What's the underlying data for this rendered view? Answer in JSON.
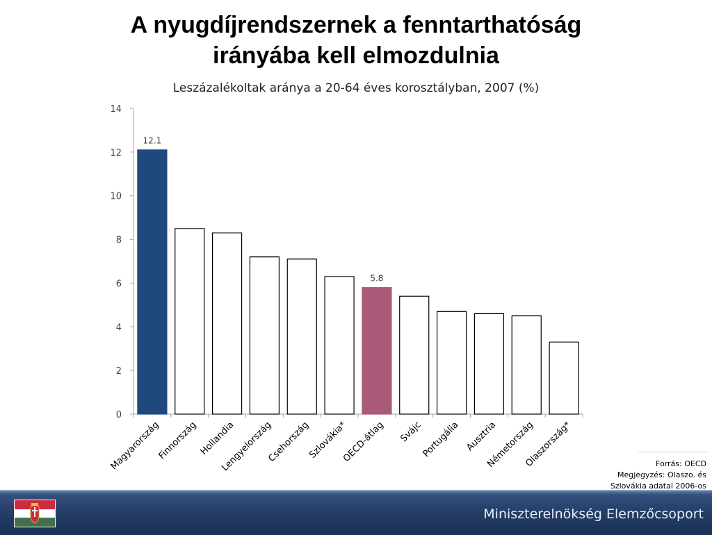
{
  "title": {
    "line1": "A nyugdíjrendszernek a fenntarthatóság",
    "line2": "irányába kell elmozdulnia"
  },
  "subtitle": "Leszázalékoltak aránya a 20-64 éves korosztályban, 2007 (%)",
  "chart_data": {
    "type": "bar",
    "title": "Leszázalékoltak aránya a 20-64 éves korosztályban, 2007 (%)",
    "categories": [
      "Magyarország",
      "Finnország",
      "Hollandia",
      "Lengyelország",
      "Csehország",
      "Szlovákia*",
      "OECD-átlag",
      "Svájc",
      "Portugália",
      "Ausztria",
      "Németország",
      "Olaszország*"
    ],
    "values": [
      12.1,
      8.5,
      8.3,
      7.2,
      7.1,
      6.3,
      5.8,
      5.4,
      4.7,
      4.6,
      4.5,
      3.3
    ],
    "data_labels": {
      "0": "12.1",
      "6": "5.8"
    },
    "ylim": [
      0,
      14
    ],
    "yticks": [
      0,
      2,
      4,
      6,
      8,
      10,
      12,
      14
    ],
    "grid": false,
    "colors": {
      "highlight_primary": "#1f497d",
      "highlight_secondary": "#a85a78",
      "default_fill": "#ffffff",
      "outline": "#000000"
    },
    "highlight": {
      "0": "highlight_primary",
      "6": "highlight_secondary"
    }
  },
  "notes": {
    "source": "Forrás:  OECD",
    "note_line1": "Megjegyzés: Olaszo. és",
    "note_line2": "Szlovákia adatai 2006-os"
  },
  "footer": {
    "org_name": "Miniszterelnökség Elemzőcsoport",
    "flag_icon": "hungarian-coat-of-arms-flag-icon",
    "colors": {
      "bar": "#263f68",
      "flag_red": "#cd2a3e",
      "flag_white": "#ffffff",
      "flag_green": "#436f4d"
    }
  }
}
